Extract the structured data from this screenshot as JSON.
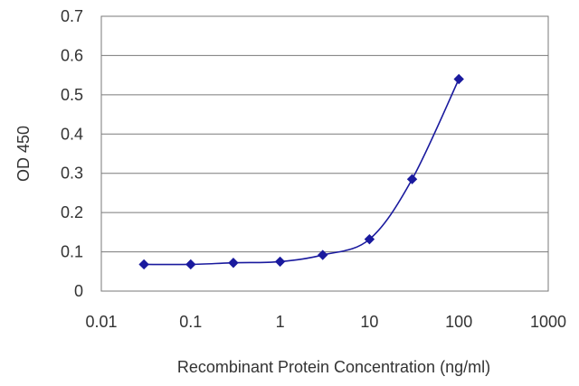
{
  "chart_data": {
    "type": "line",
    "title": "",
    "xlabel": "Recombinant Protein Concentration (ng/ml)",
    "ylabel": "OD 450",
    "x_scale": "log",
    "xlim": [
      0.01,
      1000
    ],
    "ylim": [
      0,
      0.7
    ],
    "x_ticks": [
      0.01,
      0.1,
      1,
      10,
      100,
      1000
    ],
    "x_tick_labels": [
      "0.01",
      "0.1",
      "1",
      "10",
      "100",
      "1000"
    ],
    "y_ticks": [
      0,
      0.1,
      0.2,
      0.3,
      0.4,
      0.5,
      0.6,
      0.7
    ],
    "y_tick_labels": [
      "0",
      "0.1",
      "0.2",
      "0.3",
      "0.4",
      "0.5",
      "0.6",
      "0.7"
    ],
    "grid": "horizontal",
    "legend": "none",
    "series": [
      {
        "x": [
          0.03,
          0.1,
          0.3,
          1,
          3,
          10,
          30,
          100
        ],
        "y": [
          0.068,
          0.068,
          0.072,
          0.075,
          0.092,
          0.132,
          0.285,
          0.54
        ],
        "color": "#1a1a9e",
        "marker": "diamond"
      }
    ]
  }
}
